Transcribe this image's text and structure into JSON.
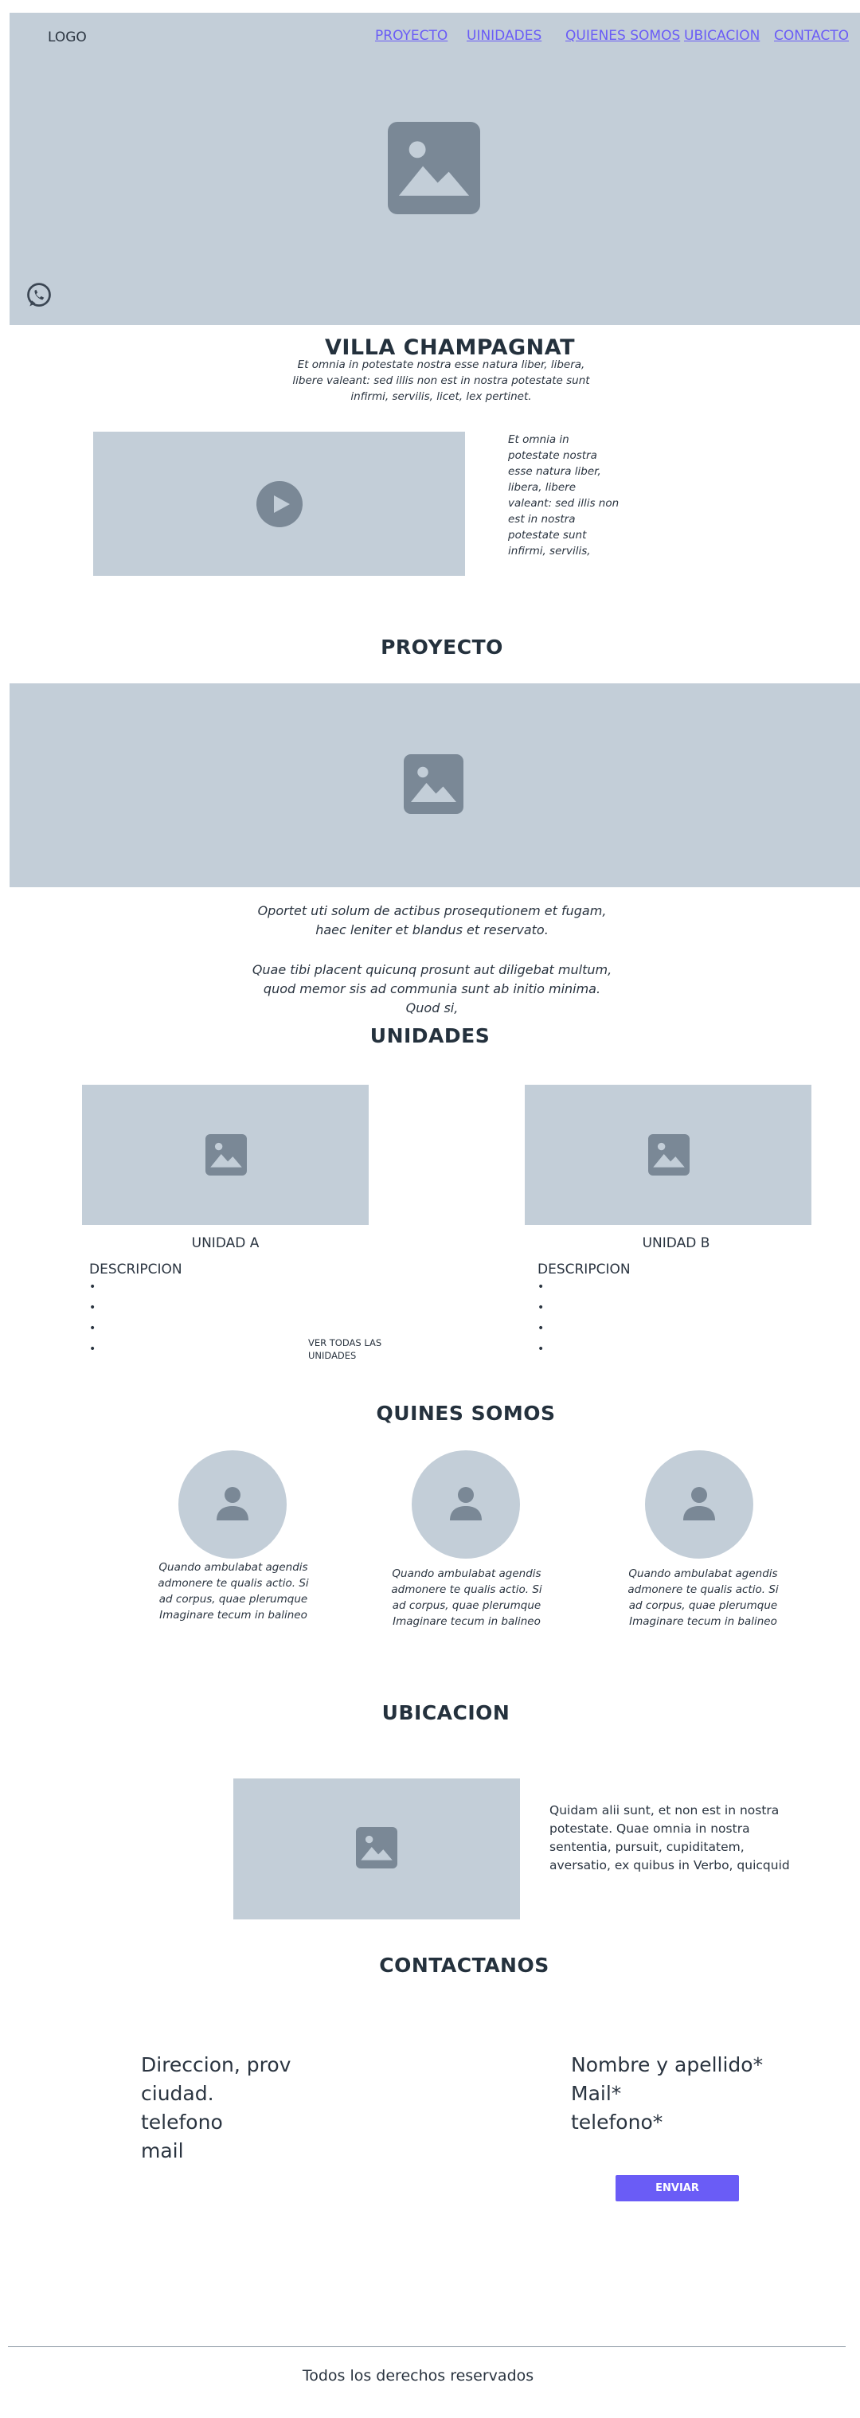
{
  "header": {
    "logo": "LOGO",
    "nav": [
      "PROYECTO",
      "UINIDADES",
      "QUIENES SOMOS",
      "UBICACION",
      "CONTACTO"
    ]
  },
  "hero": {
    "title": "VILLA CHAMPAGNAT",
    "subtitle": "Et omnia in potestate nostra esse natura liber, libera, libere valeant: sed illis non est in nostra potestate sunt infirmi, servilis, licet, lex pertinet."
  },
  "video": {
    "side_text": "Et omnia in potestate nostra esse natura liber, libera, libere valeant: sed illis non est in nostra potestate sunt infirmi, servilis,"
  },
  "proyecto": {
    "title": "PROYECTO",
    "para1": "Oportet uti solum de actibus prosequtionem et fugam, haec leniter et blandus et reservato.",
    "para2": "Quae tibi placent quicunq prosunt aut diligebat multum, quod memor sis ad communia sunt ab initio minima. Quod si,"
  },
  "unidades": {
    "title": "UNIDADES",
    "units": [
      {
        "label": "UNIDAD A",
        "desc": "DESCRIPCION"
      },
      {
        "label": "UNIDAD B",
        "desc": "DESCRIPCION"
      }
    ],
    "see_all": "VER TODAS LAS UNIDADES"
  },
  "quienes": {
    "title": "QUINES SOMOS",
    "people": [
      "Quando ambulabat agendis admonere te qualis actio. Si ad corpus, quae plerumque Imaginare tecum in balineo",
      "Quando ambulabat agendis admonere te qualis actio. Si ad corpus, quae plerumque Imaginare tecum in balineo",
      "Quando ambulabat agendis admonere te qualis actio. Si ad corpus, quae plerumque Imaginare tecum in balineo"
    ]
  },
  "ubicacion": {
    "title": "UBICACION",
    "text": "Quidam alii sunt, et non est in nostra potestate. Quae omnia in nostra sententia, pursuit, cupiditatem, aversatio, ex quibus in Verbo, quicquid"
  },
  "contacto": {
    "title": "CONTACTANOS",
    "info": [
      "Direccion, prov",
      "ciudad.",
      "telefono",
      "mail"
    ],
    "form_fields": [
      "Nombre y apellido*",
      "Mail*",
      "telefono*"
    ],
    "submit": "ENVIAR"
  },
  "footer": {
    "text": "Todos los derechos reservados"
  },
  "colors": {
    "placeholder": "#c3ced8",
    "icon": "#7a8896",
    "accent": "#6a5cf6",
    "text": "#1f2a37"
  }
}
